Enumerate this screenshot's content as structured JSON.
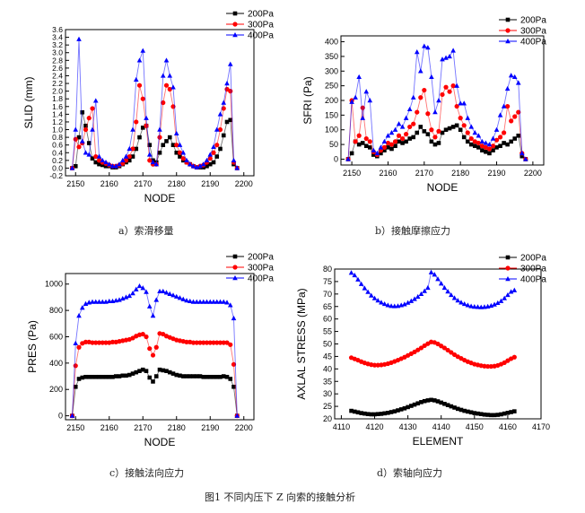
{
  "figure_caption": "图1 不同内压下 Z 向索的接触分析",
  "chart_data": [
    {
      "id": "a",
      "type": "line",
      "caption": "a）索滑移量",
      "xlabel": "NODE",
      "ylabel": "SLID (mm)",
      "xlim": [
        2147,
        2203
      ],
      "ylim": [
        -0.2,
        3.6
      ],
      "xticks": [
        2150,
        2160,
        2170,
        2180,
        2190,
        2200
      ],
      "yticks": [
        -0.2,
        0.0,
        0.2,
        0.4,
        0.6,
        0.8,
        1.0,
        1.2,
        1.4,
        1.6,
        1.8,
        2.0,
        2.2,
        2.4,
        2.6,
        2.8,
        3.0,
        3.2,
        3.4,
        3.6
      ],
      "ytick_decimals": 1,
      "grid": false,
      "legend_position": "top-right",
      "x": [
        2149,
        2150,
        2151,
        2152,
        2153,
        2154,
        2155,
        2156,
        2157,
        2158,
        2159,
        2160,
        2161,
        2162,
        2163,
        2164,
        2165,
        2166,
        2167,
        2168,
        2169,
        2170,
        2171,
        2172,
        2173,
        2174,
        2175,
        2176,
        2177,
        2178,
        2179,
        2180,
        2181,
        2182,
        2183,
        2184,
        2185,
        2186,
        2187,
        2188,
        2189,
        2190,
        2191,
        2192,
        2193,
        2194,
        2195,
        2196,
        2197,
        2198
      ],
      "series": [
        {
          "name": "200Pa",
          "marker": "square",
          "color": "#000000",
          "values": [
            0.0,
            0.05,
            0.8,
            1.45,
            1.1,
            0.65,
            0.25,
            0.15,
            0.1,
            0.08,
            0.05,
            0.05,
            0.02,
            0.02,
            0.05,
            0.1,
            0.15,
            0.2,
            0.3,
            0.5,
            0.8,
            1.05,
            1.1,
            0.6,
            0.2,
            0.15,
            0.4,
            0.6,
            0.7,
            0.8,
            0.6,
            0.4,
            0.3,
            0.2,
            0.15,
            0.1,
            0.05,
            0.02,
            0.02,
            0.02,
            0.05,
            0.1,
            0.15,
            0.3,
            0.5,
            0.85,
            1.2,
            1.25,
            0.1,
            0.0
          ]
        },
        {
          "name": "300Pa",
          "marker": "circle",
          "color": "#ff0000",
          "values": [
            0.0,
            0.75,
            0.55,
            0.65,
            1.0,
            1.3,
            1.55,
            0.3,
            0.2,
            0.15,
            0.12,
            0.08,
            0.05,
            0.05,
            0.08,
            0.12,
            0.2,
            0.3,
            0.5,
            1.2,
            2.15,
            1.8,
            1.1,
            0.2,
            0.1,
            0.1,
            0.8,
            1.7,
            2.15,
            2.05,
            1.6,
            0.6,
            0.4,
            0.25,
            0.15,
            0.1,
            0.05,
            0.02,
            0.05,
            0.08,
            0.15,
            0.25,
            0.4,
            0.6,
            1.0,
            1.55,
            2.05,
            2.0,
            0.15,
            0.0
          ]
        },
        {
          "name": "400Pa",
          "marker": "triangle",
          "color": "#0000ff",
          "values": [
            0.0,
            1.0,
            3.35,
            0.7,
            0.4,
            0.35,
            1.0,
            1.75,
            0.3,
            0.2,
            0.15,
            0.1,
            0.05,
            0.05,
            0.1,
            0.2,
            0.3,
            0.5,
            1.0,
            2.3,
            2.8,
            3.05,
            1.3,
            0.35,
            0.15,
            0.1,
            1.0,
            2.4,
            2.8,
            2.4,
            2.1,
            0.9,
            0.6,
            0.4,
            0.2,
            0.1,
            0.05,
            0.02,
            0.05,
            0.1,
            0.2,
            0.35,
            0.55,
            1.0,
            1.4,
            1.7,
            2.2,
            2.7,
            0.2,
            0.0
          ]
        }
      ]
    },
    {
      "id": "b",
      "type": "line",
      "caption": "b）接触摩擦应力",
      "xlabel": "NODE",
      "ylabel": "SFRI (Pa)",
      "xlim": [
        2147,
        2203
      ],
      "ylim": [
        -20,
        420
      ],
      "xticks": [
        2150,
        2160,
        2170,
        2180,
        2190,
        2200
      ],
      "yticks": [
        0,
        50,
        100,
        150,
        200,
        250,
        300,
        350,
        400
      ],
      "ytick_decimals": 0,
      "grid": false,
      "legend_position": "top-right",
      "x": [
        2149,
        2150,
        2151,
        2152,
        2153,
        2154,
        2155,
        2156,
        2157,
        2158,
        2159,
        2160,
        2161,
        2162,
        2163,
        2164,
        2165,
        2166,
        2167,
        2168,
        2169,
        2170,
        2171,
        2172,
        2173,
        2174,
        2175,
        2176,
        2177,
        2178,
        2179,
        2180,
        2181,
        2182,
        2183,
        2184,
        2185,
        2186,
        2187,
        2188,
        2189,
        2190,
        2191,
        2192,
        2193,
        2194,
        2195,
        2196,
        2197,
        2198
      ],
      "series": [
        {
          "name": "200Pa",
          "marker": "square",
          "color": "#000000",
          "values": [
            0,
            20,
            60,
            50,
            55,
            45,
            40,
            15,
            10,
            20,
            30,
            40,
            35,
            45,
            60,
            55,
            60,
            70,
            75,
            90,
            110,
            95,
            85,
            60,
            50,
            55,
            90,
            100,
            105,
            110,
            115,
            100,
            75,
            60,
            50,
            45,
            40,
            30,
            25,
            20,
            30,
            40,
            45,
            55,
            50,
            60,
            70,
            80,
            10,
            0
          ]
        },
        {
          "name": "300Pa",
          "marker": "circle",
          "color": "#ff0000",
          "values": [
            0,
            200,
            60,
            80,
            175,
            70,
            60,
            25,
            15,
            30,
            40,
            55,
            50,
            60,
            80,
            70,
            85,
            110,
            120,
            160,
            210,
            235,
            155,
            100,
            75,
            95,
            220,
            245,
            230,
            250,
            180,
            140,
            115,
            90,
            70,
            60,
            55,
            45,
            40,
            35,
            45,
            65,
            75,
            90,
            180,
            130,
            145,
            160,
            20,
            0
          ]
        },
        {
          "name": "400Pa",
          "marker": "triangle",
          "color": "#0000ff",
          "values": [
            0,
            195,
            210,
            280,
            140,
            230,
            200,
            30,
            20,
            40,
            60,
            80,
            90,
            100,
            120,
            110,
            140,
            170,
            210,
            365,
            300,
            385,
            380,
            280,
            160,
            200,
            340,
            345,
            350,
            370,
            250,
            190,
            190,
            140,
            110,
            90,
            80,
            60,
            55,
            50,
            70,
            100,
            150,
            180,
            240,
            285,
            280,
            260,
            20,
            0
          ]
        }
      ]
    },
    {
      "id": "c",
      "type": "line",
      "caption": "c）接触法向应力",
      "xlabel": "NODE",
      "ylabel": "PRES (Pa)",
      "xlim": [
        2147,
        2203
      ],
      "ylim": [
        -30,
        1080
      ],
      "xticks": [
        2150,
        2160,
        2170,
        2180,
        2190,
        2200
      ],
      "yticks": [
        0,
        200,
        400,
        600,
        800,
        1000
      ],
      "ytick_decimals": 0,
      "grid": false,
      "legend_position": "top-right",
      "x": [
        2149,
        2150,
        2151,
        2152,
        2153,
        2154,
        2155,
        2156,
        2157,
        2158,
        2159,
        2160,
        2161,
        2162,
        2163,
        2164,
        2165,
        2166,
        2167,
        2168,
        2169,
        2170,
        2171,
        2172,
        2173,
        2174,
        2175,
        2176,
        2177,
        2178,
        2179,
        2180,
        2181,
        2182,
        2183,
        2184,
        2185,
        2186,
        2187,
        2188,
        2189,
        2190,
        2191,
        2192,
        2193,
        2194,
        2195,
        2196,
        2197,
        2198
      ],
      "series": [
        {
          "name": "200Pa",
          "marker": "square",
          "color": "#000000",
          "values": [
            0,
            220,
            280,
            290,
            295,
            295,
            295,
            295,
            295,
            295,
            295,
            295,
            295,
            300,
            300,
            305,
            305,
            310,
            320,
            330,
            340,
            350,
            340,
            290,
            260,
            300,
            350,
            345,
            340,
            330,
            320,
            310,
            305,
            300,
            300,
            300,
            300,
            300,
            300,
            295,
            295,
            295,
            295,
            295,
            295,
            300,
            295,
            280,
            220,
            0
          ]
        },
        {
          "name": "300Pa",
          "marker": "circle",
          "color": "#ff0000",
          "values": [
            0,
            380,
            520,
            550,
            560,
            560,
            555,
            555,
            555,
            555,
            555,
            555,
            560,
            560,
            565,
            570,
            575,
            580,
            590,
            605,
            615,
            620,
            600,
            510,
            460,
            520,
            625,
            620,
            605,
            595,
            585,
            575,
            570,
            565,
            560,
            560,
            555,
            555,
            555,
            555,
            555,
            555,
            555,
            555,
            555,
            555,
            555,
            540,
            390,
            0
          ]
        },
        {
          "name": "400Pa",
          "marker": "triangle",
          "color": "#0000ff",
          "values": [
            0,
            550,
            760,
            820,
            850,
            860,
            865,
            865,
            865,
            865,
            865,
            870,
            870,
            875,
            880,
            890,
            900,
            910,
            930,
            960,
            985,
            970,
            940,
            830,
            760,
            880,
            945,
            945,
            935,
            925,
            915,
            905,
            895,
            885,
            875,
            870,
            865,
            865,
            865,
            865,
            865,
            865,
            865,
            865,
            865,
            865,
            860,
            840,
            740,
            0
          ]
        }
      ]
    },
    {
      "id": "d",
      "type": "line",
      "caption": "d）索轴向应力",
      "xlabel": "ELEMENT",
      "ylabel": "AXLAL STRESS (MPa)",
      "xlim": [
        4108,
        4170
      ],
      "ylim": [
        20,
        80
      ],
      "xticks": [
        4110,
        4120,
        4130,
        4140,
        4150,
        4160,
        4170
      ],
      "yticks": [
        20,
        25,
        30,
        35,
        40,
        45,
        50,
        55,
        60,
        65,
        70,
        75,
        80
      ],
      "ytick_decimals": 0,
      "grid": false,
      "legend_position": "top-right",
      "x": [
        4113,
        4114,
        4115,
        4116,
        4117,
        4118,
        4119,
        4120,
        4121,
        4122,
        4123,
        4124,
        4125,
        4126,
        4127,
        4128,
        4129,
        4130,
        4131,
        4132,
        4133,
        4134,
        4135,
        4136,
        4137,
        4138,
        4139,
        4140,
        4141,
        4142,
        4143,
        4144,
        4145,
        4146,
        4147,
        4148,
        4149,
        4150,
        4151,
        4152,
        4153,
        4154,
        4155,
        4156,
        4157,
        4158,
        4159,
        4160,
        4161,
        4162
      ],
      "series": [
        {
          "name": "200Pa",
          "marker": "square",
          "color": "#000000",
          "values": [
            23.2,
            22.9,
            22.6,
            22.3,
            22.1,
            21.9,
            21.8,
            21.8,
            21.9,
            22.0,
            22.2,
            22.4,
            22.7,
            23.0,
            23.4,
            23.8,
            24.2,
            24.7,
            25.2,
            25.7,
            26.2,
            26.7,
            27.1,
            27.4,
            27.6,
            27.4,
            27.0,
            26.5,
            26.0,
            25.5,
            25.0,
            24.5,
            24.0,
            23.6,
            23.2,
            22.9,
            22.6,
            22.3,
            22.1,
            21.9,
            21.7,
            21.6,
            21.5,
            21.5,
            21.6,
            21.8,
            22.1,
            22.4,
            22.7,
            23.0
          ]
        },
        {
          "name": "300Pa",
          "marker": "circle",
          "color": "#ff0000",
          "values": [
            44.5,
            44.0,
            43.5,
            42.9,
            42.4,
            42.0,
            41.7,
            41.5,
            41.5,
            41.6,
            41.8,
            42.1,
            42.5,
            43.0,
            43.5,
            44.1,
            44.7,
            45.4,
            46.1,
            46.8,
            47.6,
            48.4,
            49.3,
            50.1,
            50.8,
            50.6,
            50.0,
            49.2,
            48.4,
            47.5,
            46.6,
            45.7,
            44.9,
            44.2,
            43.5,
            42.9,
            42.4,
            41.9,
            41.6,
            41.3,
            41.1,
            41.0,
            41.0,
            41.1,
            41.4,
            41.9,
            42.5,
            43.3,
            44.1,
            44.7
          ]
        },
        {
          "name": "400Pa",
          "marker": "triangle",
          "color": "#0000ff",
          "values": [
            78.5,
            77.5,
            75.8,
            74.0,
            72.3,
            70.8,
            69.4,
            68.3,
            67.4,
            66.6,
            66.0,
            65.5,
            65.2,
            65.1,
            65.2,
            65.5,
            65.9,
            66.5,
            67.2,
            68.0,
            68.9,
            70.0,
            71.2,
            72.5,
            78.7,
            77.8,
            76.0,
            74.2,
            72.5,
            71.0,
            69.6,
            68.4,
            67.4,
            66.6,
            66.0,
            65.5,
            65.1,
            64.9,
            64.8,
            64.7,
            64.8,
            65.0,
            65.3,
            65.8,
            66.4,
            67.2,
            68.3,
            69.6,
            70.9,
            71.5
          ]
        }
      ]
    }
  ]
}
